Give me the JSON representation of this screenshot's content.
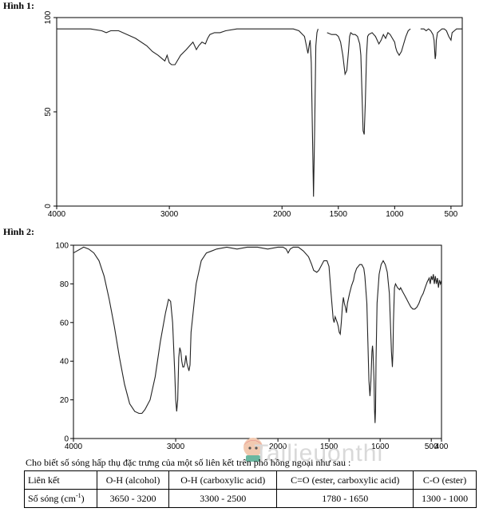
{
  "figure1": {
    "label": "Hình 1:",
    "chart_data": {
      "type": "line",
      "xlim": [
        4000,
        400
      ],
      "ylim": [
        0,
        100
      ],
      "x_ticks": [
        4000,
        3000,
        2000,
        1500,
        1000,
        500
      ],
      "y_ticks": [
        0,
        50,
        100
      ],
      "y_tick_labels": [
        "0",
        "50",
        "100"
      ],
      "grid": false,
      "segments": [
        [
          [
            4000,
            94
          ],
          [
            3700,
            94
          ],
          [
            3600,
            93
          ],
          [
            3560,
            92
          ],
          [
            3520,
            93
          ],
          [
            3450,
            93
          ],
          [
            3300,
            89
          ],
          [
            3200,
            85
          ],
          [
            3150,
            82
          ],
          [
            3100,
            80
          ],
          [
            3060,
            78
          ],
          [
            3040,
            77
          ],
          [
            3020,
            80
          ],
          [
            3000,
            76
          ],
          [
            2980,
            75
          ],
          [
            2950,
            75
          ],
          [
            2900,
            80
          ],
          [
            2850,
            83
          ],
          [
            2820,
            85
          ],
          [
            2790,
            87
          ],
          [
            2760,
            83
          ],
          [
            2740,
            85
          ],
          [
            2710,
            87
          ],
          [
            2680,
            86
          ],
          [
            2660,
            89
          ],
          [
            2640,
            91
          ],
          [
            2600,
            92
          ],
          [
            2550,
            92
          ],
          [
            2500,
            93
          ],
          [
            2400,
            94
          ],
          [
            2300,
            94
          ],
          [
            2200,
            94
          ],
          [
            2100,
            94
          ],
          [
            2000,
            94
          ],
          [
            1900,
            94
          ],
          [
            1850,
            93
          ],
          [
            1800,
            90
          ],
          [
            1780,
            84
          ],
          [
            1770,
            81
          ],
          [
            1760,
            85
          ],
          [
            1750,
            88
          ],
          [
            1740,
            76
          ],
          [
            1730,
            40
          ],
          [
            1720,
            5
          ],
          [
            1710,
            40
          ],
          [
            1700,
            85
          ],
          [
            1690,
            92
          ],
          [
            1680,
            94
          ]
        ],
        [
          [
            1600,
            92
          ],
          [
            1560,
            91
          ],
          [
            1520,
            91
          ],
          [
            1500,
            90
          ],
          [
            1480,
            87
          ],
          [
            1460,
            80
          ],
          [
            1440,
            70
          ],
          [
            1425,
            72
          ],
          [
            1410,
            82
          ],
          [
            1400,
            90
          ],
          [
            1390,
            92
          ],
          [
            1370,
            91
          ],
          [
            1350,
            91
          ],
          [
            1330,
            90
          ],
          [
            1310,
            86
          ],
          [
            1300,
            80
          ],
          [
            1290,
            60
          ],
          [
            1280,
            40
          ],
          [
            1270,
            38
          ],
          [
            1260,
            55
          ],
          [
            1250,
            80
          ],
          [
            1240,
            90
          ],
          [
            1230,
            91
          ],
          [
            1200,
            92
          ],
          [
            1170,
            90
          ],
          [
            1140,
            86
          ],
          [
            1120,
            88
          ],
          [
            1100,
            91
          ],
          [
            1080,
            89
          ],
          [
            1060,
            92
          ],
          [
            1040,
            91
          ],
          [
            1020,
            89
          ],
          [
            1000,
            87
          ],
          [
            990,
            84
          ],
          [
            980,
            82
          ],
          [
            960,
            80
          ],
          [
            940,
            82
          ],
          [
            920,
            86
          ],
          [
            900,
            90
          ],
          [
            880,
            93
          ],
          [
            860,
            94
          ]
        ],
        [
          [
            770,
            94
          ],
          [
            740,
            94
          ],
          [
            720,
            93
          ],
          [
            700,
            94
          ],
          [
            680,
            93
          ],
          [
            660,
            91
          ],
          [
            650,
            88
          ],
          [
            640,
            78
          ],
          [
            635,
            80
          ],
          [
            630,
            88
          ],
          [
            620,
            92
          ],
          [
            600,
            93
          ],
          [
            580,
            94
          ],
          [
            560,
            94
          ],
          [
            540,
            93
          ],
          [
            520,
            90
          ],
          [
            500,
            88
          ],
          [
            490,
            92
          ],
          [
            470,
            93
          ],
          [
            450,
            94
          ],
          [
            420,
            94
          ],
          [
            400,
            94
          ]
        ]
      ]
    }
  },
  "figure2": {
    "label": "Hình 2:",
    "chart_data": {
      "type": "line",
      "xlim": [
        4000,
        400
      ],
      "ylim": [
        0,
        100
      ],
      "x_ticks": [
        4000,
        3000,
        2000,
        1500,
        1000,
        500,
        400
      ],
      "y_ticks": [
        0,
        20,
        40,
        60,
        80,
        100
      ],
      "grid": false,
      "segments": [
        [
          [
            4000,
            96
          ],
          [
            3900,
            99
          ],
          [
            3850,
            98
          ],
          [
            3800,
            96
          ],
          [
            3750,
            92
          ],
          [
            3700,
            84
          ],
          [
            3650,
            72
          ],
          [
            3600,
            58
          ],
          [
            3550,
            42
          ],
          [
            3500,
            28
          ],
          [
            3450,
            18
          ],
          [
            3400,
            14
          ],
          [
            3360,
            13
          ],
          [
            3330,
            13
          ],
          [
            3300,
            15
          ],
          [
            3250,
            20
          ],
          [
            3200,
            32
          ],
          [
            3150,
            50
          ],
          [
            3100,
            65
          ],
          [
            3070,
            72
          ],
          [
            3050,
            71
          ],
          [
            3030,
            60
          ],
          [
            3010,
            35
          ],
          [
            3000,
            20
          ],
          [
            2990,
            14
          ],
          [
            2980,
            20
          ],
          [
            2970,
            42
          ],
          [
            2960,
            47
          ],
          [
            2950,
            45
          ],
          [
            2940,
            40
          ],
          [
            2930,
            37
          ],
          [
            2920,
            37
          ],
          [
            2910,
            39
          ],
          [
            2900,
            43
          ],
          [
            2890,
            39
          ],
          [
            2880,
            37
          ],
          [
            2870,
            35
          ],
          [
            2860,
            38
          ],
          [
            2850,
            55
          ],
          [
            2800,
            80
          ],
          [
            2750,
            92
          ],
          [
            2700,
            96
          ],
          [
            2650,
            97
          ],
          [
            2600,
            98
          ],
          [
            2500,
            99
          ],
          [
            2400,
            98
          ],
          [
            2300,
            99
          ],
          [
            2200,
            99
          ],
          [
            2100,
            98
          ],
          [
            2000,
            99
          ],
          [
            1950,
            99
          ],
          [
            1920,
            98
          ],
          [
            1900,
            96
          ],
          [
            1880,
            98
          ],
          [
            1850,
            99
          ],
          [
            1800,
            99
          ],
          [
            1750,
            97
          ],
          [
            1700,
            94
          ],
          [
            1670,
            90
          ],
          [
            1650,
            87
          ],
          [
            1620,
            86
          ],
          [
            1600,
            87
          ],
          [
            1580,
            89
          ],
          [
            1550,
            92
          ],
          [
            1520,
            92
          ],
          [
            1500,
            89
          ],
          [
            1480,
            75
          ],
          [
            1460,
            62
          ],
          [
            1450,
            60
          ],
          [
            1440,
            63
          ],
          [
            1420,
            60
          ],
          [
            1410,
            58
          ],
          [
            1400,
            55
          ],
          [
            1390,
            54
          ],
          [
            1380,
            60
          ],
          [
            1370,
            68
          ],
          [
            1360,
            73
          ],
          [
            1350,
            70
          ],
          [
            1340,
            68
          ],
          [
            1330,
            65
          ],
          [
            1320,
            70
          ],
          [
            1300,
            75
          ],
          [
            1280,
            79
          ],
          [
            1260,
            82
          ],
          [
            1250,
            85
          ],
          [
            1230,
            88
          ],
          [
            1200,
            90
          ],
          [
            1180,
            90
          ],
          [
            1160,
            88
          ],
          [
            1150,
            84
          ],
          [
            1130,
            70
          ],
          [
            1120,
            50
          ],
          [
            1110,
            30
          ],
          [
            1100,
            22
          ],
          [
            1090,
            30
          ],
          [
            1080,
            45
          ],
          [
            1075,
            48
          ],
          [
            1070,
            45
          ],
          [
            1060,
            30
          ],
          [
            1055,
            15
          ],
          [
            1050,
            8
          ],
          [
            1045,
            15
          ],
          [
            1040,
            40
          ],
          [
            1030,
            70
          ],
          [
            1010,
            85
          ],
          [
            990,
            90
          ],
          [
            970,
            92
          ],
          [
            950,
            90
          ],
          [
            930,
            86
          ],
          [
            910,
            75
          ],
          [
            900,
            60
          ],
          [
            890,
            45
          ],
          [
            880,
            37
          ],
          [
            875,
            45
          ],
          [
            870,
            60
          ],
          [
            860,
            78
          ],
          [
            850,
            80
          ],
          [
            830,
            78
          ],
          [
            810,
            77
          ],
          [
            800,
            78
          ],
          [
            780,
            76
          ],
          [
            760,
            74
          ],
          [
            740,
            72
          ],
          [
            720,
            70
          ],
          [
            700,
            68
          ],
          [
            680,
            67
          ],
          [
            660,
            67
          ],
          [
            640,
            68
          ],
          [
            620,
            70
          ],
          [
            600,
            73
          ],
          [
            580,
            75
          ],
          [
            560,
            78
          ],
          [
            540,
            81
          ],
          [
            520,
            83
          ],
          [
            510,
            80
          ],
          [
            500,
            84
          ],
          [
            490,
            82
          ],
          [
            480,
            85
          ],
          [
            470,
            80
          ],
          [
            460,
            84
          ],
          [
            450,
            80
          ],
          [
            440,
            83
          ],
          [
            430,
            78
          ],
          [
            420,
            82
          ],
          [
            410,
            80
          ],
          [
            400,
            82
          ]
        ]
      ]
    }
  },
  "note": "Cho biết số sóng hấp thụ đặc trưng của một số liên kết trên phổ hồng ngoại như sau :",
  "table": {
    "row_header_1": "Liên kết",
    "row_header_2_prefix": "Số sóng (cm",
    "row_header_2_sup": "-1",
    "row_header_2_suffix": ")",
    "bonds": [
      "O-H (alcohol)",
      "O-H (carboxylic acid)",
      "C=O (ester, carboxylic acid)",
      "C-O (ester)"
    ],
    "ranges": [
      "3650 - 3200",
      "3300 - 2500",
      "1780 - 1650",
      "1300 - 1000"
    ]
  },
  "watermark": {
    "text": "Tailieuonthi"
  }
}
